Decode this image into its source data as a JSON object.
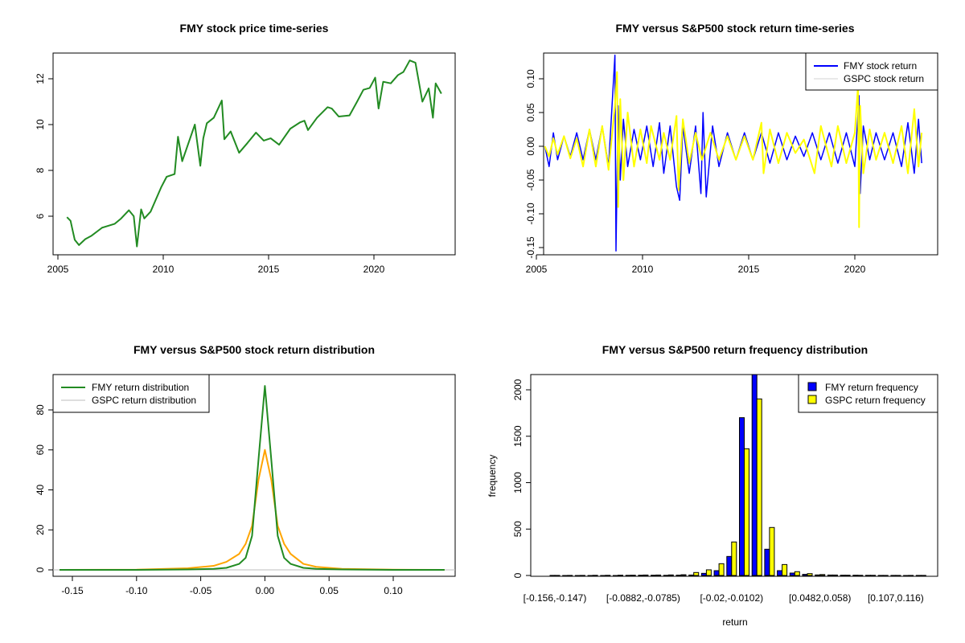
{
  "chart_data": [
    {
      "type": "line",
      "title": "FMY stock price time-series",
      "xlabel": "",
      "ylabel": "",
      "xlim": [
        2004.8,
        2023.9
      ],
      "ylim": [
        4.4,
        13.2
      ],
      "xticks": [
        2005,
        2010,
        2015,
        2020
      ],
      "yticks": [
        6,
        8,
        10,
        12
      ],
      "series": [
        {
          "name": "FMY",
          "color": "#228B22",
          "points": [
            [
              2005.43,
              5.96
            ],
            [
              2005.6,
              5.8
            ],
            [
              2005.7,
              5.38
            ],
            [
              2005.8,
              4.97
            ],
            [
              2006.0,
              4.74
            ],
            [
              2006.3,
              5.0
            ],
            [
              2006.6,
              5.15
            ],
            [
              2007.1,
              5.5
            ],
            [
              2007.7,
              5.67
            ],
            [
              2008.0,
              5.9
            ],
            [
              2008.37,
              6.26
            ],
            [
              2008.6,
              6.0
            ],
            [
              2008.75,
              4.68
            ],
            [
              2008.95,
              6.3
            ],
            [
              2009.1,
              5.9
            ],
            [
              2009.4,
              6.2
            ],
            [
              2009.9,
              7.26
            ],
            [
              2010.16,
              7.72
            ],
            [
              2010.54,
              7.84
            ],
            [
              2010.7,
              9.47
            ],
            [
              2010.9,
              8.4
            ],
            [
              2011.2,
              9.2
            ],
            [
              2011.5,
              10.0
            ],
            [
              2011.76,
              8.2
            ],
            [
              2011.9,
              9.4
            ],
            [
              2012.07,
              10.06
            ],
            [
              2012.4,
              10.3
            ],
            [
              2012.78,
              11.05
            ],
            [
              2012.9,
              9.36
            ],
            [
              2013.2,
              9.7
            ],
            [
              2013.6,
              8.77
            ],
            [
              2014.0,
              9.2
            ],
            [
              2014.4,
              9.65
            ],
            [
              2014.77,
              9.3
            ],
            [
              2015.1,
              9.4
            ],
            [
              2015.5,
              9.12
            ],
            [
              2016.03,
              9.82
            ],
            [
              2016.5,
              10.1
            ],
            [
              2016.7,
              10.17
            ],
            [
              2016.87,
              9.76
            ],
            [
              2017.3,
              10.3
            ],
            [
              2017.8,
              10.76
            ],
            [
              2018.0,
              10.7
            ],
            [
              2018.33,
              10.35
            ],
            [
              2018.84,
              10.4
            ],
            [
              2019.2,
              11.0
            ],
            [
              2019.5,
              11.52
            ],
            [
              2019.8,
              11.6
            ],
            [
              2020.06,
              12.05
            ],
            [
              2020.22,
              10.7
            ],
            [
              2020.44,
              11.87
            ],
            [
              2020.8,
              11.8
            ],
            [
              2021.14,
              12.16
            ],
            [
              2021.4,
              12.3
            ],
            [
              2021.7,
              12.8
            ],
            [
              2021.97,
              12.7
            ],
            [
              2022.3,
              11.0
            ],
            [
              2022.6,
              11.58
            ],
            [
              2022.8,
              10.3
            ],
            [
              2022.93,
              11.8
            ],
            [
              2023.2,
              11.35
            ]
          ]
        }
      ]
    },
    {
      "type": "line",
      "title": "FMY versus S&P500 stock return time-series",
      "xlabel": "",
      "ylabel": "",
      "xlim": [
        2004.8,
        2023.9
      ],
      "ylim": [
        -0.16,
        0.14
      ],
      "xticks": [
        2005,
        2010,
        2015,
        2020
      ],
      "yticks": [
        -0.15,
        -0.1,
        -0.05,
        0.0,
        0.05,
        0.1
      ],
      "ytick_labels": [
        "-0.15",
        "-0.10",
        "-0.05",
        "0.00",
        "0.05",
        "0.10"
      ],
      "legend": {
        "position": "top-right",
        "entries": [
          {
            "label": "FMY stock return",
            "color": "#0000FF"
          },
          {
            "label": "GSPC stock return",
            "color": "#D3D3D3"
          }
        ]
      },
      "series": [
        {
          "name": "FMY stock return",
          "color": "#0000FF",
          "points": [
            [
              2005.4,
              0
            ],
            [
              2005.6,
              -0.03
            ],
            [
              2005.8,
              0.02
            ],
            [
              2006.0,
              -0.02
            ],
            [
              2006.3,
              0.015
            ],
            [
              2006.6,
              -0.015
            ],
            [
              2006.9,
              0.02
            ],
            [
              2007.2,
              -0.02
            ],
            [
              2007.5,
              0.025
            ],
            [
              2007.8,
              -0.02
            ],
            [
              2008.1,
              0.03
            ],
            [
              2008.4,
              -0.03
            ],
            [
              2008.7,
              0.135
            ],
            [
              2008.75,
              -0.155
            ],
            [
              2008.85,
              0.06
            ],
            [
              2008.95,
              -0.05
            ],
            [
              2009.1,
              0.04
            ],
            [
              2009.3,
              -0.03
            ],
            [
              2009.6,
              0.025
            ],
            [
              2009.9,
              -0.02
            ],
            [
              2010.2,
              0.03
            ],
            [
              2010.5,
              -0.03
            ],
            [
              2010.8,
              0.035
            ],
            [
              2011.0,
              -0.04
            ],
            [
              2011.3,
              0.03
            ],
            [
              2011.6,
              -0.06
            ],
            [
              2011.75,
              -0.08
            ],
            [
              2011.9,
              0.03
            ],
            [
              2012.2,
              -0.04
            ],
            [
              2012.5,
              0.03
            ],
            [
              2012.75,
              -0.07
            ],
            [
              2012.85,
              0.05
            ],
            [
              2013.0,
              -0.075
            ],
            [
              2013.3,
              0.03
            ],
            [
              2013.6,
              -0.03
            ],
            [
              2014.0,
              0.02
            ],
            [
              2014.4,
              -0.02
            ],
            [
              2014.8,
              0.02
            ],
            [
              2015.2,
              -0.02
            ],
            [
              2015.6,
              0.02
            ],
            [
              2016.0,
              -0.025
            ],
            [
              2016.4,
              0.02
            ],
            [
              2016.8,
              -0.02
            ],
            [
              2017.2,
              0.015
            ],
            [
              2017.6,
              -0.015
            ],
            [
              2018.0,
              0.02
            ],
            [
              2018.4,
              -0.02
            ],
            [
              2018.8,
              0.02
            ],
            [
              2019.2,
              -0.025
            ],
            [
              2019.6,
              0.02
            ],
            [
              2020.0,
              -0.03
            ],
            [
              2020.2,
              0.075
            ],
            [
              2020.25,
              -0.07
            ],
            [
              2020.4,
              0.03
            ],
            [
              2020.7,
              -0.02
            ],
            [
              2021.0,
              0.02
            ],
            [
              2021.4,
              -0.02
            ],
            [
              2021.8,
              0.02
            ],
            [
              2022.2,
              -0.03
            ],
            [
              2022.5,
              0.035
            ],
            [
              2022.8,
              -0.04
            ],
            [
              2023.0,
              0.04
            ],
            [
              2023.15,
              -0.025
            ]
          ]
        },
        {
          "name": "GSPC stock return",
          "color": "#FFFF00",
          "points": [
            [
              2005.4,
              0
            ],
            [
              2005.6,
              -0.015
            ],
            [
              2005.8,
              0.012
            ],
            [
              2006.0,
              -0.012
            ],
            [
              2006.3,
              0.015
            ],
            [
              2006.6,
              -0.018
            ],
            [
              2006.9,
              0.012
            ],
            [
              2007.2,
              -0.03
            ],
            [
              2007.5,
              0.025
            ],
            [
              2007.8,
              -0.03
            ],
            [
              2008.1,
              0.03
            ],
            [
              2008.4,
              -0.035
            ],
            [
              2008.7,
              0.06
            ],
            [
              2008.8,
              0.11
            ],
            [
              2008.85,
              -0.09
            ],
            [
              2008.95,
              0.07
            ],
            [
              2009.1,
              -0.05
            ],
            [
              2009.3,
              0.05
            ],
            [
              2009.6,
              -0.03
            ],
            [
              2009.9,
              0.025
            ],
            [
              2010.2,
              -0.025
            ],
            [
              2010.4,
              0.03
            ],
            [
              2010.8,
              -0.02
            ],
            [
              2011.0,
              0.02
            ],
            [
              2011.3,
              -0.02
            ],
            [
              2011.6,
              0.045
            ],
            [
              2011.7,
              -0.065
            ],
            [
              2011.9,
              0.04
            ],
            [
              2012.2,
              -0.025
            ],
            [
              2012.5,
              0.02
            ],
            [
              2012.8,
              -0.02
            ],
            [
              2013.2,
              0.02
            ],
            [
              2013.6,
              -0.02
            ],
            [
              2014.0,
              0.015
            ],
            [
              2014.4,
              -0.02
            ],
            [
              2014.8,
              0.015
            ],
            [
              2015.2,
              -0.02
            ],
            [
              2015.6,
              0.035
            ],
            [
              2015.7,
              -0.04
            ],
            [
              2016.0,
              0.025
            ],
            [
              2016.4,
              -0.025
            ],
            [
              2016.8,
              0.02
            ],
            [
              2017.2,
              -0.01
            ],
            [
              2017.6,
              0.01
            ],
            [
              2018.1,
              -0.04
            ],
            [
              2018.4,
              0.03
            ],
            [
              2018.9,
              -0.03
            ],
            [
              2019.2,
              0.03
            ],
            [
              2019.6,
              -0.025
            ],
            [
              2020.0,
              0.02
            ],
            [
              2020.15,
              0.09
            ],
            [
              2020.2,
              -0.12
            ],
            [
              2020.25,
              0.06
            ],
            [
              2020.4,
              -0.04
            ],
            [
              2020.7,
              0.025
            ],
            [
              2021.0,
              -0.02
            ],
            [
              2021.4,
              0.02
            ],
            [
              2021.8,
              -0.025
            ],
            [
              2022.2,
              0.03
            ],
            [
              2022.5,
              -0.04
            ],
            [
              2022.8,
              0.055
            ],
            [
              2023.0,
              -0.03
            ],
            [
              2023.15,
              0.02
            ]
          ]
        }
      ]
    },
    {
      "type": "line",
      "title": "FMY versus S&P500 stock return distribution",
      "xlabel": "",
      "ylabel": "",
      "xlim": [
        -0.16,
        0.14
      ],
      "ylim": [
        0,
        92
      ],
      "xticks": [
        -0.15,
        -0.1,
        -0.05,
        0.0,
        0.05,
        0.1
      ],
      "xtick_labels": [
        "-0.15",
        "-0.10",
        "-0.05",
        "0.00",
        "0.05",
        "0.10"
      ],
      "yticks": [
        0,
        20,
        40,
        60,
        80
      ],
      "legend": {
        "position": "top-left",
        "entries": [
          {
            "label": "FMY return distribution",
            "color": "#228B22"
          },
          {
            "label": "GSPC return distribution",
            "color": "#BEBEBE"
          }
        ]
      },
      "x": [
        -0.16,
        -0.1,
        -0.06,
        -0.04,
        -0.03,
        -0.02,
        -0.015,
        -0.01,
        -0.005,
        0,
        0.005,
        0.01,
        0.015,
        0.02,
        0.03,
        0.04,
        0.06,
        0.1,
        0.14
      ],
      "series": [
        {
          "name": "GSPC return distribution",
          "color": "#FFA500",
          "values": [
            0,
            0.1,
            0.8,
            2,
            4,
            8,
            13,
            22,
            45,
            60,
            45,
            22,
            13,
            8,
            3,
            1.5,
            0.5,
            0.1,
            0
          ]
        },
        {
          "name": "FMY return distribution",
          "color": "#228B22",
          "values": [
            0,
            0,
            0.2,
            0.5,
            1,
            3,
            6,
            17,
            55,
            92,
            55,
            17,
            6,
            3,
            1,
            0.5,
            0.2,
            0,
            0
          ]
        }
      ]
    },
    {
      "type": "bar",
      "title": "FMY versus S&P500 return frequency distribution",
      "xlabel": "return",
      "ylabel": "frequency",
      "ylim": [
        0,
        2170
      ],
      "yticks": [
        0,
        500,
        1000,
        1500,
        2000
      ],
      "tick_labels": [
        {
          "bin": 0,
          "label": "[-0.156,-0.147)"
        },
        {
          "bin": 7,
          "label": "[-0.0882,-0.0785)"
        },
        {
          "bin": 14,
          "label": "[-0.02,-0.0102)"
        },
        {
          "bin": 21,
          "label": "[0.0482,0.058)"
        },
        {
          "bin": 27,
          "label": "[0.107,0.116)"
        }
      ],
      "legend": {
        "position": "top-right",
        "entries": [
          {
            "label": "FMY return frequency",
            "color": "#0000FF"
          },
          {
            "label": "GSPC return frequency",
            "color": "#FFFF00"
          }
        ]
      },
      "series": [
        {
          "name": "FMY return frequency",
          "color": "#0000FF",
          "values": [
            1,
            0,
            0,
            0,
            0,
            0,
            2,
            3,
            3,
            2,
            4,
            5,
            23,
            52,
            205,
            1700,
            2200,
            283,
            52,
            26,
            12,
            6,
            5,
            3,
            3,
            2,
            1,
            1,
            0,
            1
          ]
        },
        {
          "name": "GSPC return frequency",
          "color": "#FFFF00",
          "values": [
            1,
            1,
            1,
            2,
            2,
            3,
            3,
            5,
            5,
            6,
            8,
            32,
            61,
            127,
            361,
            1365,
            1902,
            517,
            118,
            41,
            20,
            10,
            5,
            3,
            2,
            2,
            1,
            1,
            1,
            1
          ]
        }
      ]
    }
  ]
}
